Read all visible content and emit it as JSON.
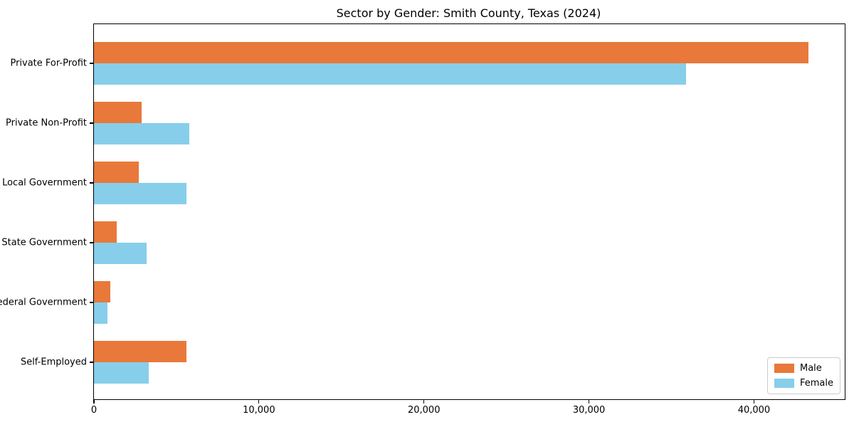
{
  "title": "Sector by Gender: Smith County, Texas (2024)",
  "chart_data": {
    "type": "bar",
    "orientation": "horizontal",
    "title": "Sector by Gender: Smith County, Texas (2024)",
    "xlabel": "",
    "ylabel": "",
    "categories": [
      "Private For-Profit",
      "Private Non-Profit",
      "Local Government",
      "State Government",
      "Federal Government",
      "Self-Employed"
    ],
    "series": [
      {
        "name": "Male",
        "color": "#E8793A",
        "values": [
          43300,
          2900,
          2700,
          1400,
          1000,
          5600
        ]
      },
      {
        "name": "Female",
        "color": "#87CEEB",
        "values": [
          35900,
          5800,
          5600,
          3200,
          800,
          3300
        ]
      }
    ],
    "xlim": [
      0,
      45500
    ],
    "xticks": [
      0,
      10000,
      20000,
      30000,
      40000
    ],
    "xtick_labels": [
      "0",
      "10,000",
      "20,000",
      "30,000",
      "40,000"
    ],
    "grid": false,
    "legend": {
      "position": "lower right",
      "entries": [
        "Male",
        "Female"
      ]
    }
  }
}
